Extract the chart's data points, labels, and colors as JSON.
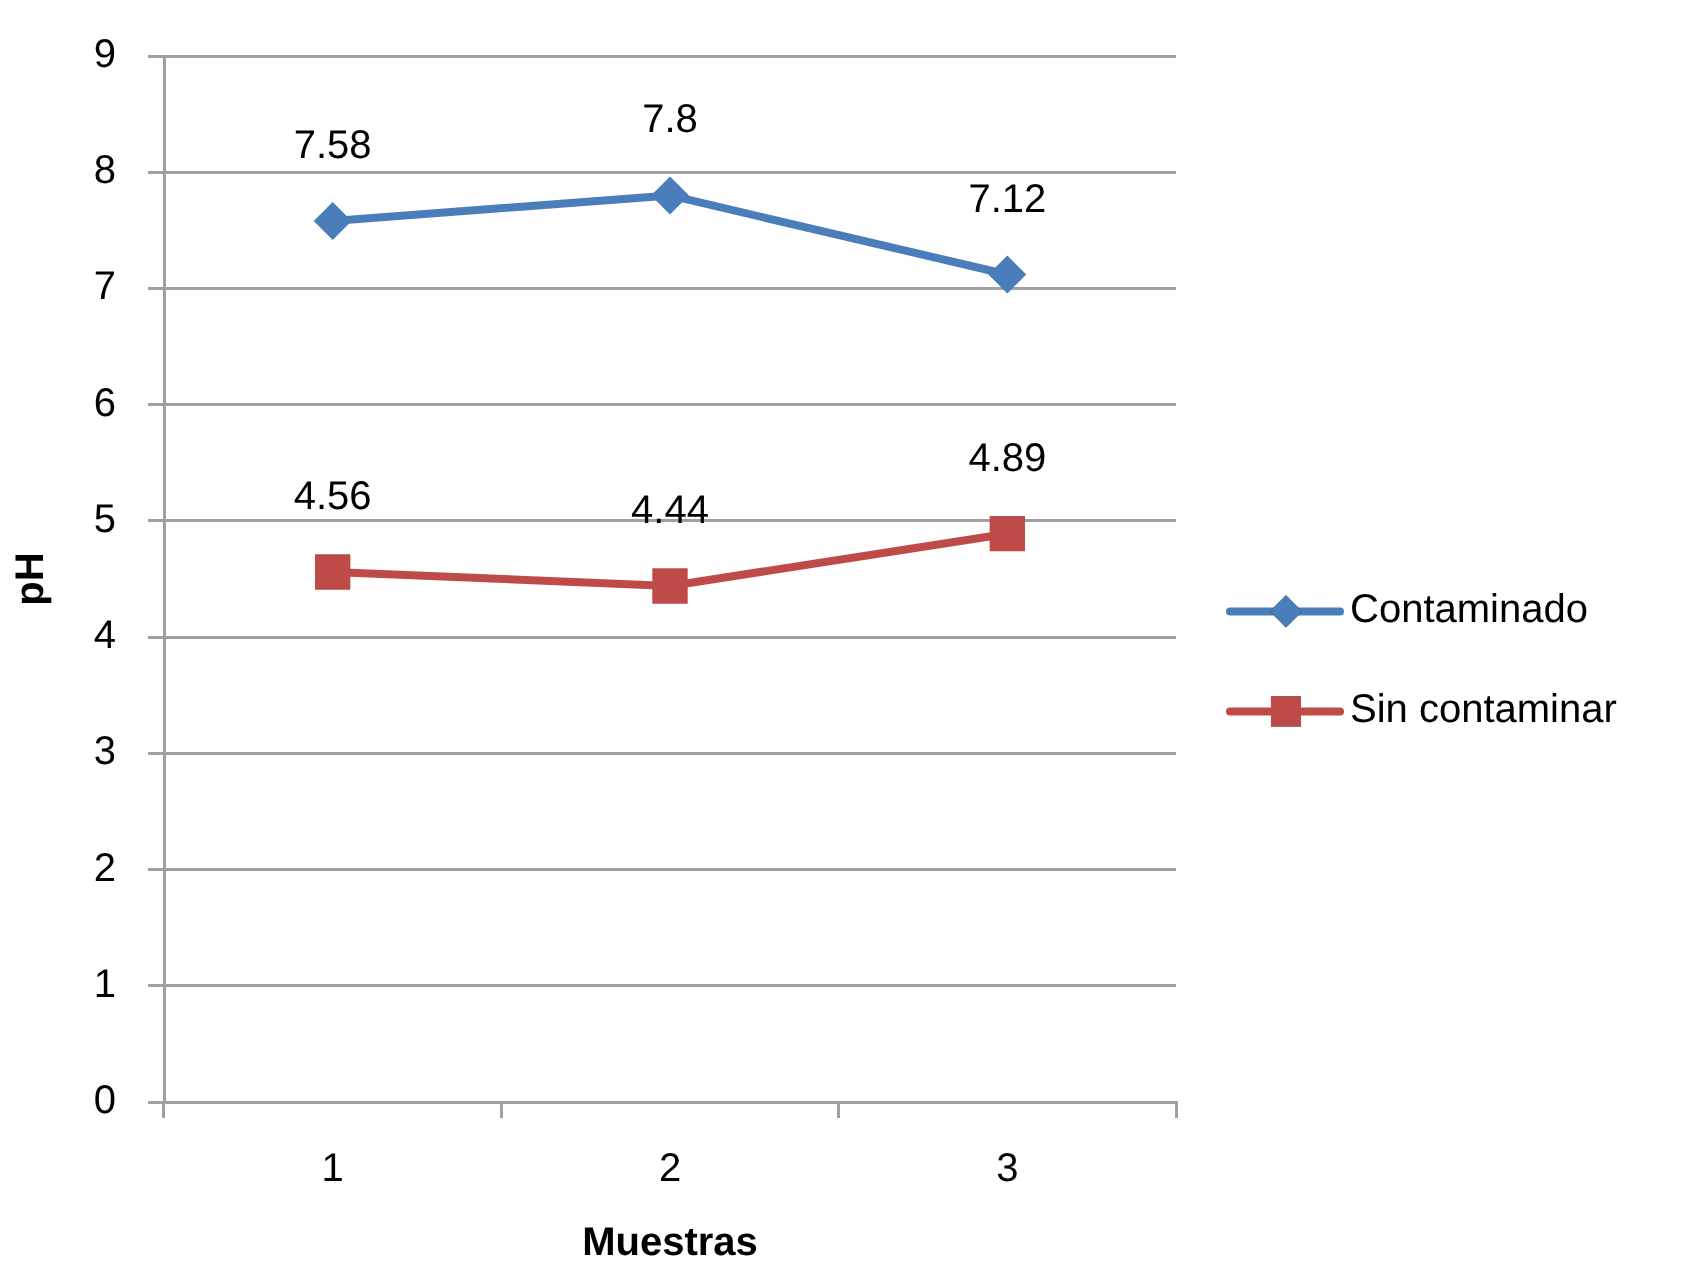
{
  "chart_data": {
    "type": "line",
    "xlabel": "Muestras",
    "ylabel": "pH",
    "categories": [
      "1",
      "2",
      "3"
    ],
    "series": [
      {
        "name": "Contaminado",
        "color": "#4a7ebb",
        "marker": "diamond",
        "values": [
          7.58,
          7.8,
          7.12
        ]
      },
      {
        "name": "Sin contaminar",
        "color": "#be4b48",
        "marker": "square",
        "values": [
          4.56,
          4.44,
          4.89
        ]
      }
    ],
    "ylim": [
      0,
      9
    ],
    "yticks": [
      0,
      1,
      2,
      3,
      4,
      5,
      6,
      7,
      8,
      9
    ],
    "grid": "y",
    "legend": "right",
    "data_labels": true
  }
}
